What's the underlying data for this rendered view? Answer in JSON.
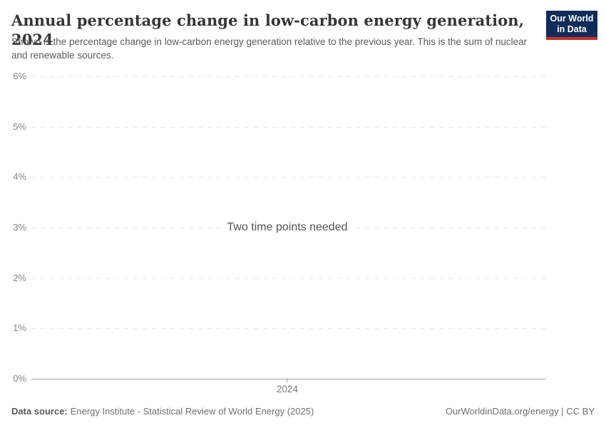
{
  "header": {
    "title": "Annual percentage change in low-carbon energy generation, 2024",
    "subtitle": "Shown is the percentage change in low-carbon energy generation relative to the previous year. This is the sum of nuclear and renewable sources.",
    "logo": {
      "line1": "Our World",
      "line2": "in Data",
      "bg_color": "#102d59",
      "stripe_color": "#c7332b"
    }
  },
  "chart_data": {
    "type": "line",
    "title": "Annual percentage change in low-carbon energy generation, 2024",
    "xlabel": "",
    "ylabel": "",
    "x_ticks": [
      "2024"
    ],
    "y_ticks": [
      "0%",
      "1%",
      "2%",
      "3%",
      "4%",
      "5%",
      "6%"
    ],
    "y_tick_values": [
      0,
      1,
      2,
      3,
      4,
      5,
      6
    ],
    "ylim": [
      0,
      6
    ],
    "series": [],
    "empty_message": "Two time points needed",
    "grid": "horizontal-dashed",
    "legend": "none",
    "colors": {
      "gridline": "#e2e2e2",
      "axis": "#a3a3a3",
      "tick_label": "#858585"
    }
  },
  "footer": {
    "source_label": "Data source:",
    "source_text": "Energy Institute - Statistical Review of World Energy (2025)",
    "rights": "OurWorldinData.org/energy | CC BY"
  }
}
